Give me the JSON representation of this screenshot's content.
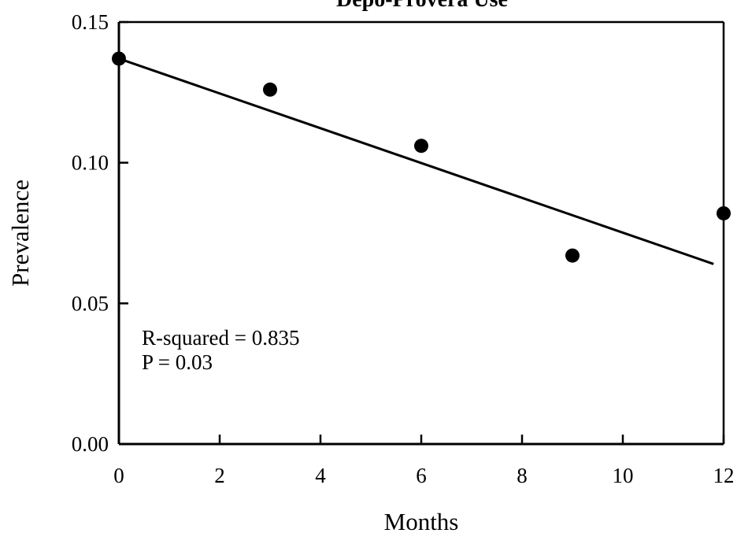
{
  "chart_data": {
    "type": "scatter",
    "title": "Depo-Provera Use",
    "xlabel": "Months",
    "ylabel": "Prevalence",
    "xlim": [
      0,
      12
    ],
    "ylim": [
      0.0,
      0.15
    ],
    "x_ticks": [
      "0",
      "2",
      "4",
      "6",
      "8",
      "10",
      "12"
    ],
    "y_ticks": [
      "0.00",
      "0.05",
      "0.10",
      "0.15"
    ],
    "series": [
      {
        "points": [
          {
            "x": 0,
            "y": 0.137
          },
          {
            "x": 3,
            "y": 0.126
          },
          {
            "x": 6,
            "y": 0.106
          },
          {
            "x": 9,
            "y": 0.067
          },
          {
            "x": 12,
            "y": 0.082
          }
        ]
      }
    ],
    "trendline": {
      "x": [
        0,
        11.8
      ],
      "y": [
        0.137,
        0.064
      ]
    },
    "annotations": [
      "R-squared = 0.835",
      "P = 0.03"
    ],
    "grid": false,
    "marker_color": "#000000"
  }
}
